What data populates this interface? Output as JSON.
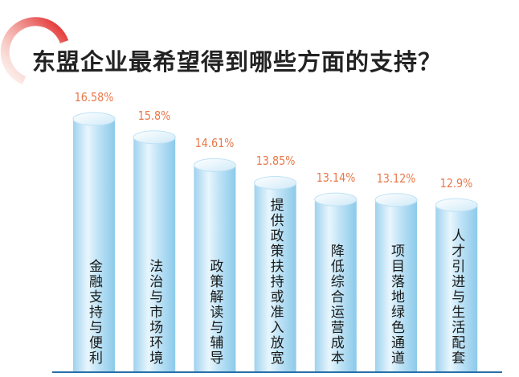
{
  "chart_data": {
    "type": "bar",
    "title": "东盟企业最希望得到哪些方面的支持？",
    "categories": [
      "金融支持与便利",
      "法治与市场环境",
      "政策解读与辅导",
      "提供政策扶持或准入放宽",
      "降低综合运营成本",
      "项目落地绿色通道",
      "人才引进与生活配套"
    ],
    "values": [
      16.58,
      15.8,
      14.61,
      13.85,
      13.14,
      13.12,
      12.9
    ],
    "value_labels": [
      "16.58%",
      "15.8%",
      "14.61%",
      "13.85%",
      "13.14%",
      "13.12%",
      "12.9%"
    ],
    "grid": false,
    "colors": {
      "bar": "#a8d8f0",
      "value_label": "#e8784a",
      "baseline": "#2a6fa8",
      "arc": "#e03a2a"
    }
  }
}
